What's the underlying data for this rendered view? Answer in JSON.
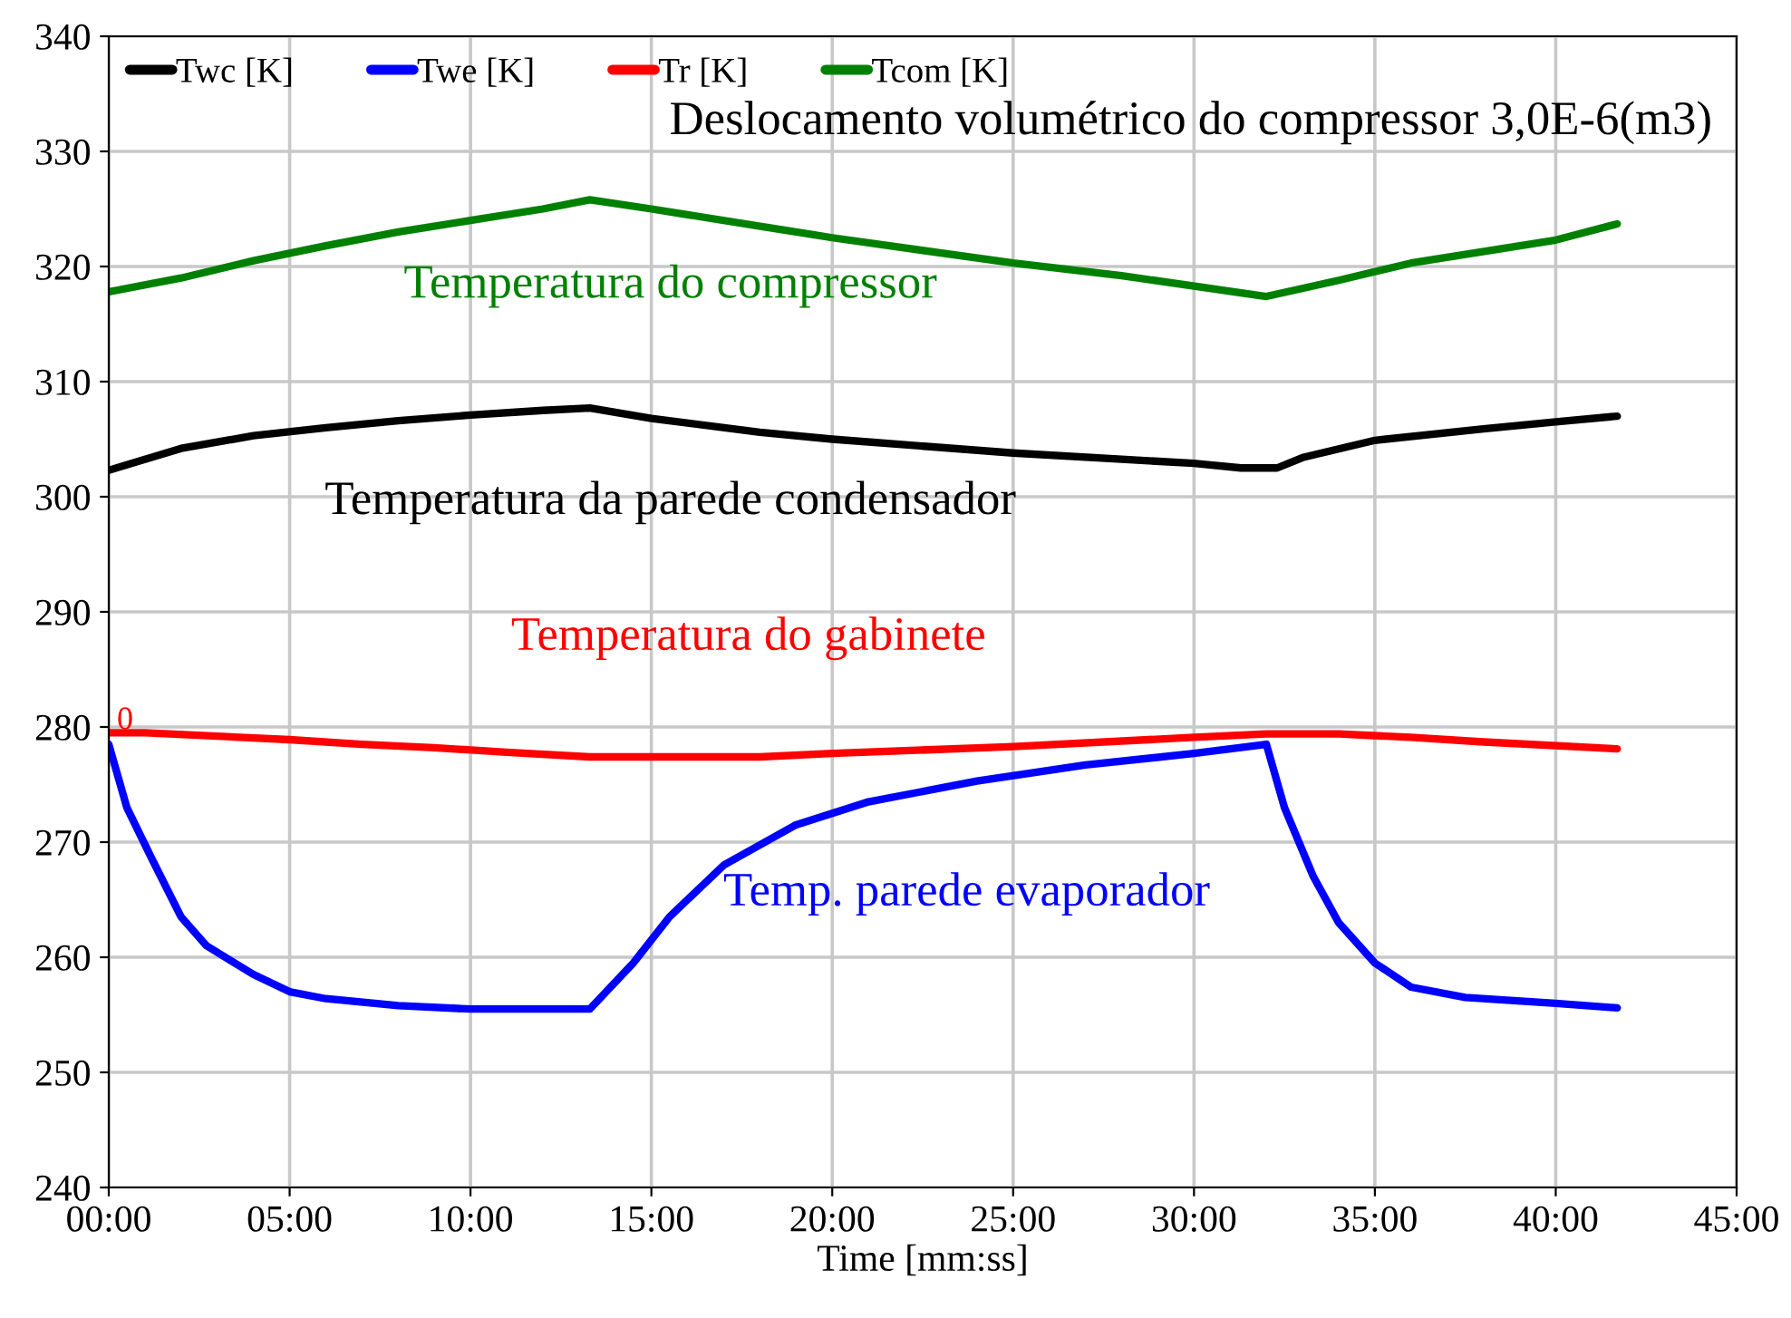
{
  "chart_data": {
    "type": "line",
    "subtitle": "Deslocamento volumétrico do compressor 3,0E-6(m3)",
    "xlabel": "Time [mm:ss]",
    "xlim": [
      0,
      45
    ],
    "xticks": [
      {
        "value": 0,
        "label": "00:00"
      },
      {
        "value": 5,
        "label": "05:00"
      },
      {
        "value": 10,
        "label": "10:00"
      },
      {
        "value": 15,
        "label": "15:00"
      },
      {
        "value": 20,
        "label": "20:00"
      },
      {
        "value": 25,
        "label": "25:00"
      },
      {
        "value": 30,
        "label": "30:00"
      },
      {
        "value": 35,
        "label": "35:00"
      },
      {
        "value": 40,
        "label": "40:00"
      },
      {
        "value": 45,
        "label": "45:00"
      }
    ],
    "ylim": [
      240,
      340
    ],
    "yticks": [
      240,
      250,
      260,
      270,
      280,
      290,
      300,
      310,
      320,
      330,
      340
    ],
    "grid": true,
    "legend": "top left",
    "line_style": "solid",
    "marker": "none",
    "series": [
      {
        "name": "Twc [K]",
        "color": "#000000",
        "x": [
          0,
          2,
          4,
          6,
          8,
          10,
          12,
          13.3,
          15,
          18,
          20,
          25,
          30,
          31.3,
          32.3,
          33,
          35,
          38,
          40,
          41.7
        ],
        "values": [
          302.3,
          304.2,
          305.3,
          306,
          306.6,
          307.1,
          307.5,
          307.7,
          306.8,
          305.6,
          305,
          303.8,
          302.9,
          302.5,
          302.5,
          303.4,
          304.9,
          305.9,
          306.5,
          307
        ]
      },
      {
        "name": "Twe [K]",
        "color": "#0000ff",
        "x": [
          0,
          0.5,
          1.2,
          2,
          2.7,
          4,
          5,
          6,
          8,
          10,
          13.3,
          14.5,
          15.5,
          17,
          19,
          21,
          24,
          27,
          30,
          32,
          32.5,
          33.3,
          34,
          35,
          36,
          37.5,
          40,
          41.7
        ],
        "values": [
          278.5,
          273,
          268.5,
          263.5,
          261,
          258.5,
          257,
          256.4,
          255.8,
          255.5,
          255.5,
          259.5,
          263.5,
          268,
          271.5,
          273.5,
          275.3,
          276.7,
          277.7,
          278.5,
          273,
          267,
          263,
          259.5,
          257.4,
          256.5,
          256,
          255.6
        ]
      },
      {
        "name": "Tr [K]",
        "color": "#ff0000",
        "x": [
          0,
          1,
          3,
          5,
          7,
          9,
          11,
          13.3,
          18,
          20,
          25,
          30,
          32,
          34,
          36,
          38,
          41.7
        ],
        "values": [
          279.5,
          279.5,
          279.2,
          278.9,
          278.5,
          278.2,
          277.8,
          277.4,
          277.4,
          277.7,
          278.3,
          279.1,
          279.4,
          279.4,
          279.1,
          278.7,
          278.1
        ]
      },
      {
        "name": "Tcom [K]",
        "color": "#008000",
        "x": [
          0,
          2,
          4,
          6,
          8,
          10,
          12,
          13.3,
          15,
          20,
          25,
          28,
          32,
          34,
          36,
          40,
          41.7
        ],
        "values": [
          317.8,
          319,
          320.5,
          321.8,
          323,
          324,
          325,
          325.8,
          325,
          322.5,
          320.3,
          319.2,
          317.4,
          318.8,
          320.3,
          322.3,
          323.7
        ]
      }
    ],
    "annotations": [
      "Temperatura do compressor",
      "Temperatura da parede condensador",
      "Temperatura do gabinete",
      "Temp. parede evaporador",
      "0"
    ]
  }
}
